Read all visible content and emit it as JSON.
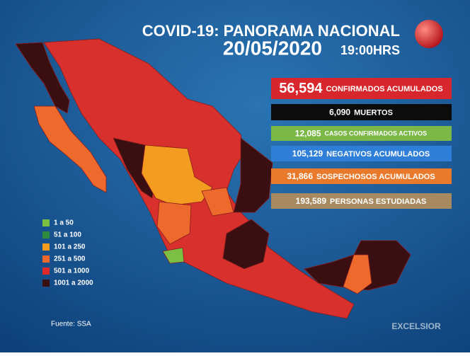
{
  "header": {
    "title": "COVID-19: PANORAMA NACIONAL",
    "date": "20/05/2020",
    "time": "19:00HRS"
  },
  "stats": [
    {
      "number": "56,594",
      "label": "CONFIRMADOS ACUMULADOS",
      "color": "#d7262c"
    },
    {
      "number": "6,090",
      "label": "MUERTOS",
      "color": "#0c0c0c"
    },
    {
      "number": "12,085",
      "label": "CASOS CONFIRMADOS ACTIVOS",
      "color": "#7bb848"
    },
    {
      "number": "105,129",
      "label": "NEGATIVOS ACUMULADOS",
      "color": "#2f7fd8"
    },
    {
      "number": "31,866",
      "label": "SOSPECHOSOS ACUMULADOS",
      "color": "#ea7a2b"
    },
    {
      "number": "193,589",
      "label": "PERSONAS ESTUDIADAS",
      "color": "#a78a5f"
    }
  ],
  "legend": [
    {
      "label": "1 a 50",
      "color": "#7bc043"
    },
    {
      "label": "51 a 100",
      "color": "#2e8b3e"
    },
    {
      "label": "101 a 250",
      "color": "#f39c1f"
    },
    {
      "label": "251 a 500",
      "color": "#ee6a2c"
    },
    {
      "label": "501 a 1000",
      "color": "#e02a2a"
    },
    {
      "label": "1001 a 2000",
      "color": "#3a0f12"
    }
  ],
  "source": "Fuente: SSA",
  "logo": "EXCELSIOR"
}
